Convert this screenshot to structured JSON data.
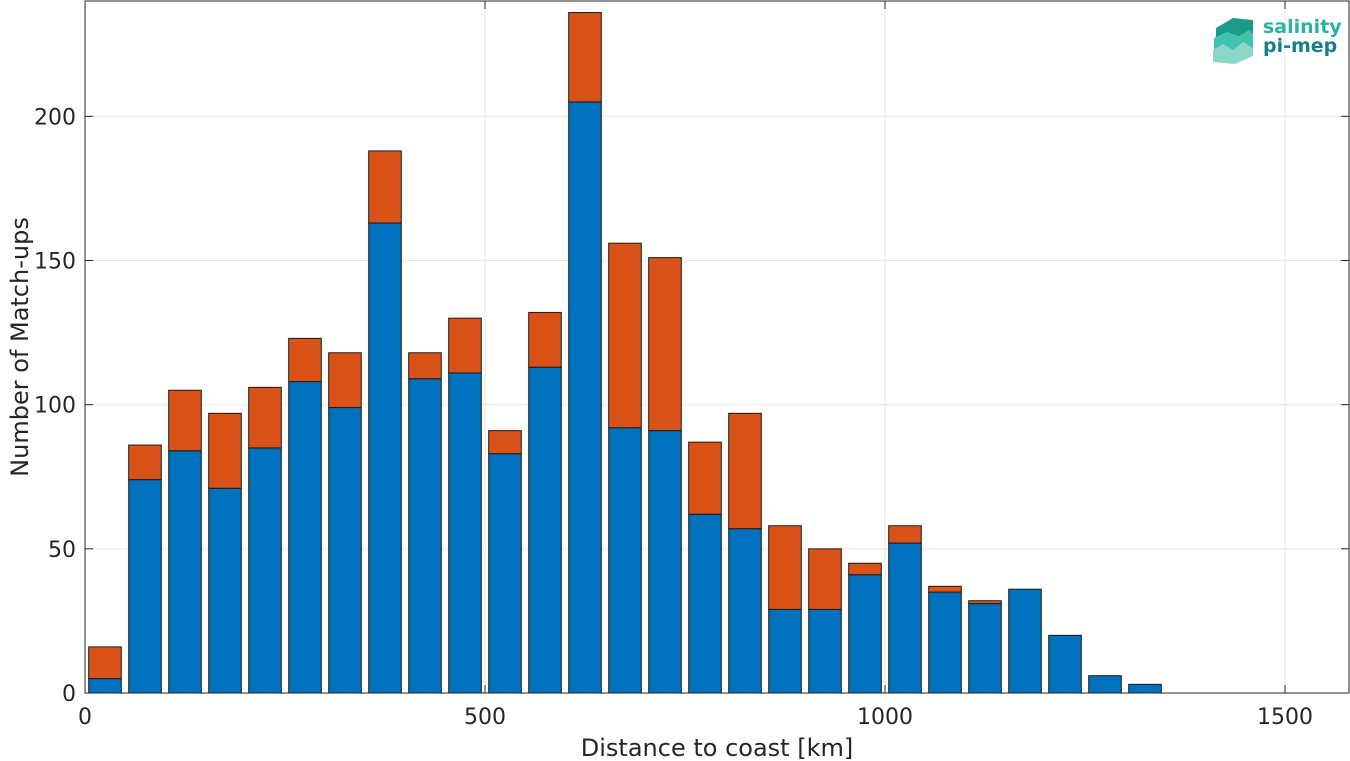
{
  "chart_data": {
    "type": "bar",
    "stacked": true,
    "xlabel": "Distance to coast [km]",
    "ylabel": "Number of Match-ups",
    "xlim": [
      0,
      1580
    ],
    "ylim": [
      0,
      240
    ],
    "xticks": [
      0,
      500,
      1000,
      1500
    ],
    "yticks": [
      0,
      50,
      100,
      150,
      200
    ],
    "grid": true,
    "bar_centers": [
      25,
      75,
      125,
      175,
      225,
      275,
      325,
      375,
      425,
      475,
      525,
      575,
      625,
      675,
      725,
      775,
      825,
      875,
      925,
      975,
      1025,
      1075,
      1125,
      1175,
      1225,
      1275,
      1325
    ],
    "series": [
      {
        "color": "#0072bd",
        "values": [
          5,
          74,
          84,
          71,
          85,
          108,
          99,
          163,
          109,
          111,
          83,
          113,
          205,
          92,
          91,
          62,
          57,
          29,
          29,
          41,
          52,
          35,
          31,
          36,
          20,
          6,
          3
        ]
      },
      {
        "color": "#d95319",
        "values": [
          11,
          12,
          21,
          26,
          21,
          15,
          19,
          25,
          9,
          19,
          8,
          19,
          31,
          64,
          60,
          25,
          40,
          29,
          21,
          4,
          6,
          2,
          1,
          0,
          0,
          0,
          0
        ]
      }
    ]
  },
  "logo": {
    "line1": "salinity",
    "line2": "pi-mep",
    "color_top": "#2ab3a0",
    "color_bottom": "#1a7f8c"
  }
}
